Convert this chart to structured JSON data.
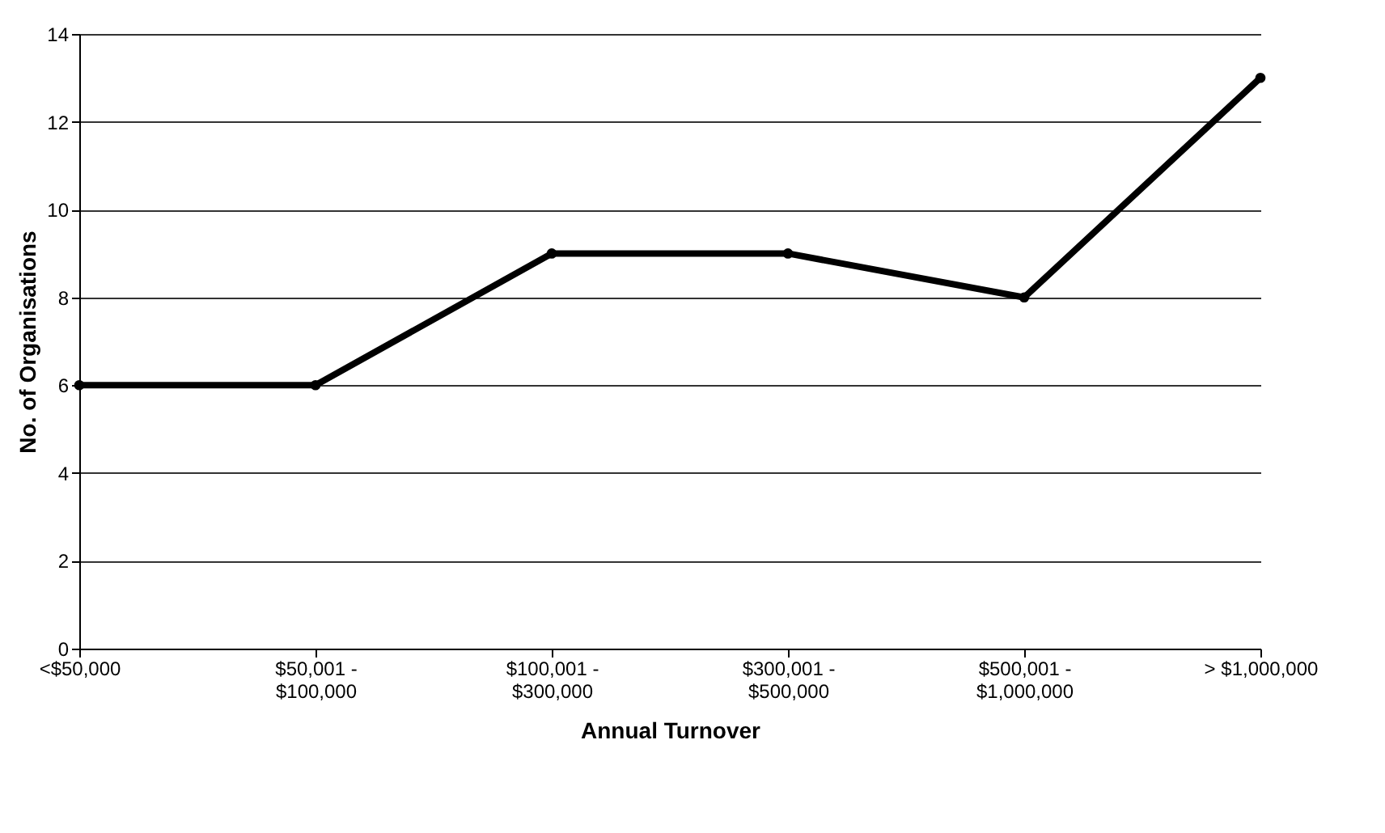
{
  "chart_data": {
    "type": "line",
    "xlabel": "Annual Turnover",
    "ylabel": "No.  of  Organisations",
    "categories": [
      "<$50,000",
      "$50,001 -\n$100,000",
      "$100,001 -\n$300,000",
      "$300,001 -\n$500,000",
      "$500,001 -\n$1,000,000",
      "> $1,000,000"
    ],
    "series": [
      {
        "color": "#000000",
        "values": [
          6,
          6,
          9,
          9,
          8,
          13
        ]
      }
    ],
    "ylim": [
      0,
      14
    ],
    "yticks": [
      0,
      2,
      4,
      6,
      8,
      10,
      12,
      14
    ],
    "grid": "y",
    "marker": "circle",
    "line_style": "solid"
  }
}
